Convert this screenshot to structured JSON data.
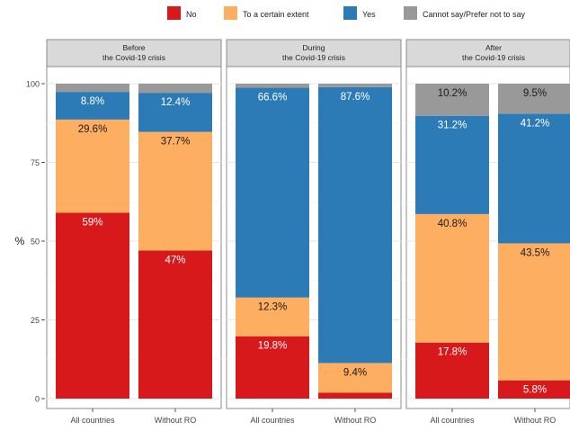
{
  "chart_data": {
    "type": "bar",
    "stacked": true,
    "ylabel": "%",
    "ylim": [
      0,
      100
    ],
    "yticks": [
      0,
      25,
      50,
      75,
      100
    ],
    "grid": true,
    "legend_position": "top",
    "stack_order": [
      "No",
      "To a certain extent",
      "Yes",
      "Cannot say/Prefer not to say"
    ],
    "legend": [
      {
        "name": "No",
        "color": "#d7191c"
      },
      {
        "name": "To a certain extent",
        "color": "#fdae61"
      },
      {
        "name": "Yes",
        "color": "#2c7bb6"
      },
      {
        "name": "Cannot say/Prefer not to say",
        "color": "#999999"
      }
    ],
    "panels": [
      {
        "title_line1": "Before",
        "title_line2": "the Covid-19 crisis",
        "bars": [
          {
            "category": "All countries",
            "values": [
              59.0,
              29.6,
              8.8,
              2.6
            ],
            "labels": [
              "59%",
              "29.6%",
              "8.8%",
              ""
            ]
          },
          {
            "category": "Without RO",
            "values": [
              47.0,
              37.7,
              12.4,
              2.9
            ],
            "labels": [
              "47%",
              "37.7%",
              "12.4%",
              ""
            ]
          }
        ]
      },
      {
        "title_line1": "During",
        "title_line2": "the Covid-19 crisis",
        "bars": [
          {
            "category": "All countries",
            "values": [
              19.8,
              12.3,
              66.6,
              1.3
            ],
            "labels": [
              "19.8%",
              "12.3%",
              "66.6%",
              ""
            ]
          },
          {
            "category": "Without RO",
            "values": [
              1.9,
              9.4,
              87.6,
              1.1
            ],
            "labels": [
              "",
              "9.4%",
              "87.6%",
              ""
            ]
          }
        ]
      },
      {
        "title_line1": "After",
        "title_line2": "the Covid-19 crisis",
        "bars": [
          {
            "category": "All countries",
            "values": [
              17.8,
              40.8,
              31.2,
              10.2
            ],
            "labels": [
              "17.8%",
              "40.8%",
              "31.2%",
              "10.2%"
            ]
          },
          {
            "category": "Without RO",
            "values": [
              5.8,
              43.5,
              41.2,
              9.5
            ],
            "labels": [
              "5.8%",
              "43.5%",
              "41.2%",
              "9.5%"
            ]
          }
        ]
      }
    ]
  }
}
